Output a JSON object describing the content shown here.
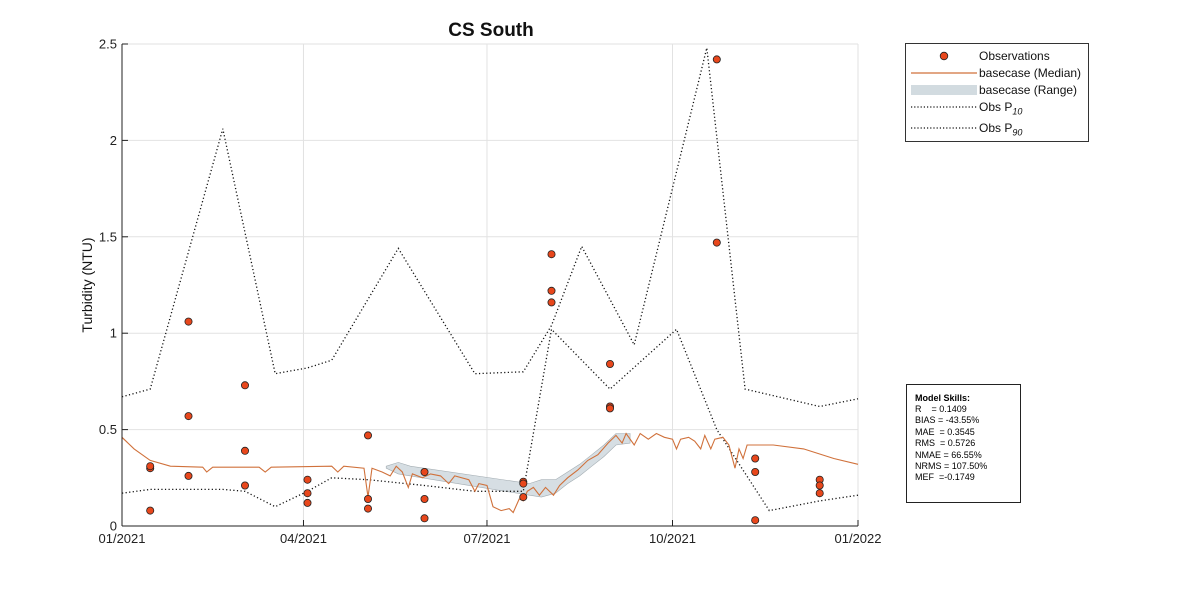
{
  "chart_data": {
    "type": "line",
    "title": "CS South",
    "xlabel": "",
    "ylabel": "Turbidity (NTU)",
    "x_type": "date",
    "xlim": [
      "2021-01-01",
      "2022-01-01"
    ],
    "ylim": [
      0,
      2.5
    ],
    "x_ticks": [
      "2021-01-01",
      "2021-04-01",
      "2021-07-01",
      "2021-10-01",
      "2022-01-01"
    ],
    "x_tick_labels": [
      "01/2021",
      "04/2021",
      "07/2021",
      "10/2021",
      "01/2022"
    ],
    "y_ticks": [
      0,
      0.5,
      1,
      1.5,
      2,
      2.5
    ],
    "y_tick_labels": [
      "0",
      "0.5",
      "1",
      "1.5",
      "2",
      "2.5"
    ],
    "grid": true,
    "legend_position": "outside-top-right",
    "series": [
      {
        "name": "Observations",
        "type": "scatter",
        "color": "#e8471c",
        "points": [
          [
            "2021-01-15",
            0.3
          ],
          [
            "2021-01-15",
            0.31
          ],
          [
            "2021-01-15",
            0.08
          ],
          [
            "2021-02-03",
            1.06
          ],
          [
            "2021-02-03",
            0.57
          ],
          [
            "2021-02-03",
            0.26
          ],
          [
            "2021-03-03",
            0.73
          ],
          [
            "2021-03-03",
            0.39
          ],
          [
            "2021-03-03",
            0.21
          ],
          [
            "2021-04-03",
            0.24
          ],
          [
            "2021-04-03",
            0.17
          ],
          [
            "2021-04-03",
            0.12
          ],
          [
            "2021-05-03",
            0.47
          ],
          [
            "2021-05-03",
            0.14
          ],
          [
            "2021-05-03",
            0.09
          ],
          [
            "2021-05-31",
            0.28
          ],
          [
            "2021-05-31",
            0.14
          ],
          [
            "2021-05-31",
            0.04
          ],
          [
            "2021-07-19",
            0.23
          ],
          [
            "2021-07-19",
            0.22
          ],
          [
            "2021-07-19",
            0.15
          ],
          [
            "2021-08-02",
            1.41
          ],
          [
            "2021-08-02",
            1.22
          ],
          [
            "2021-08-02",
            1.16
          ],
          [
            "2021-08-31",
            0.84
          ],
          [
            "2021-08-31",
            0.62
          ],
          [
            "2021-08-31",
            0.61
          ],
          [
            "2021-10-23",
            2.42
          ],
          [
            "2021-10-23",
            1.47
          ],
          [
            "2021-11-11",
            0.35
          ],
          [
            "2021-11-11",
            0.28
          ],
          [
            "2021-11-11",
            0.03
          ],
          [
            "2021-12-13",
            0.24
          ],
          [
            "2021-12-13",
            0.21
          ],
          [
            "2021-12-13",
            0.17
          ]
        ]
      },
      {
        "name": "basecase (Median)",
        "type": "line",
        "color": "#d0713b",
        "points": [
          [
            "2021-01-01",
            0.46
          ],
          [
            "2021-01-07",
            0.4
          ],
          [
            "2021-01-15",
            0.34
          ],
          [
            "2021-01-25",
            0.31
          ],
          [
            "2021-02-10",
            0.305
          ],
          [
            "2021-02-12",
            0.28
          ],
          [
            "2021-02-15",
            0.305
          ],
          [
            "2021-03-10",
            0.305
          ],
          [
            "2021-03-13",
            0.28
          ],
          [
            "2021-03-16",
            0.305
          ],
          [
            "2021-04-15",
            0.31
          ],
          [
            "2021-04-18",
            0.28
          ],
          [
            "2021-04-21",
            0.31
          ],
          [
            "2021-05-01",
            0.3
          ],
          [
            "2021-05-03",
            0.15
          ],
          [
            "2021-05-05",
            0.3
          ],
          [
            "2021-05-10",
            0.28
          ],
          [
            "2021-05-14",
            0.26
          ],
          [
            "2021-05-17",
            0.31
          ],
          [
            "2021-05-20",
            0.28
          ],
          [
            "2021-05-23",
            0.2
          ],
          [
            "2021-05-25",
            0.27
          ],
          [
            "2021-05-30",
            0.25
          ],
          [
            "2021-06-03",
            0.27
          ],
          [
            "2021-06-08",
            0.26
          ],
          [
            "2021-06-12",
            0.22
          ],
          [
            "2021-06-15",
            0.26
          ],
          [
            "2021-06-22",
            0.24
          ],
          [
            "2021-06-25",
            0.18
          ],
          [
            "2021-06-27",
            0.22
          ],
          [
            "2021-07-01",
            0.21
          ],
          [
            "2021-07-04",
            0.1
          ],
          [
            "2021-07-08",
            0.08
          ],
          [
            "2021-07-12",
            0.09
          ],
          [
            "2021-07-14",
            0.07
          ],
          [
            "2021-07-17",
            0.14
          ],
          [
            "2021-07-19",
            0.13
          ],
          [
            "2021-07-21",
            0.18
          ],
          [
            "2021-07-24",
            0.2
          ],
          [
            "2021-07-27",
            0.16
          ],
          [
            "2021-07-30",
            0.2
          ],
          [
            "2021-08-03",
            0.16
          ],
          [
            "2021-08-06",
            0.21
          ],
          [
            "2021-08-10",
            0.25
          ],
          [
            "2021-08-15",
            0.29
          ],
          [
            "2021-08-20",
            0.34
          ],
          [
            "2021-08-25",
            0.37
          ],
          [
            "2021-08-30",
            0.43
          ],
          [
            "2021-09-03",
            0.47
          ],
          [
            "2021-09-06",
            0.43
          ],
          [
            "2021-09-08",
            0.48
          ],
          [
            "2021-09-12",
            0.42
          ],
          [
            "2021-09-15",
            0.48
          ],
          [
            "2021-09-19",
            0.45
          ],
          [
            "2021-09-23",
            0.48
          ],
          [
            "2021-09-27",
            0.46
          ],
          [
            "2021-10-01",
            0.45
          ],
          [
            "2021-10-03",
            0.4
          ],
          [
            "2021-10-05",
            0.45
          ],
          [
            "2021-10-09",
            0.46
          ],
          [
            "2021-10-12",
            0.44
          ],
          [
            "2021-10-15",
            0.4
          ],
          [
            "2021-10-17",
            0.47
          ],
          [
            "2021-10-20",
            0.4
          ],
          [
            "2021-10-22",
            0.45
          ],
          [
            "2021-10-26",
            0.46
          ],
          [
            "2021-10-29",
            0.42
          ],
          [
            "2021-11-01",
            0.3
          ],
          [
            "2021-11-03",
            0.4
          ],
          [
            "2021-11-05",
            0.35
          ],
          [
            "2021-11-07",
            0.42
          ],
          [
            "2021-11-20",
            0.42
          ],
          [
            "2021-12-05",
            0.4
          ],
          [
            "2021-12-20",
            0.35
          ],
          [
            "2022-01-01",
            0.32
          ]
        ]
      },
      {
        "name": "basecase (Range)",
        "type": "area",
        "color": "#d2dbe0",
        "points": [
          [
            "2021-05-12",
            0.3,
            0.31
          ],
          [
            "2021-05-18",
            0.27,
            0.33
          ],
          [
            "2021-05-24",
            0.26,
            0.31
          ],
          [
            "2021-07-22",
            0.16,
            0.22
          ],
          [
            "2021-07-28",
            0.15,
            0.24
          ],
          [
            "2021-08-04",
            0.17,
            0.24
          ],
          [
            "2021-08-10",
            0.22,
            0.28
          ],
          [
            "2021-08-16",
            0.26,
            0.32
          ],
          [
            "2021-08-22",
            0.31,
            0.37
          ],
          [
            "2021-08-28",
            0.36,
            0.42
          ],
          [
            "2021-09-03",
            0.42,
            0.48
          ],
          [
            "2021-09-10",
            0.43,
            0.48
          ]
        ]
      },
      {
        "name": "Obs P10",
        "type": "line",
        "style": "dotted",
        "color": "#111111",
        "points": [
          [
            "2021-01-01",
            0.17
          ],
          [
            "2021-01-15",
            0.19
          ],
          [
            "2021-02-03",
            0.19
          ],
          [
            "2021-02-20",
            0.19
          ],
          [
            "2021-03-03",
            0.18
          ],
          [
            "2021-03-18",
            0.1
          ],
          [
            "2021-04-03",
            0.18
          ],
          [
            "2021-04-15",
            0.25
          ],
          [
            "2021-05-03",
            0.24
          ],
          [
            "2021-05-31",
            0.21
          ],
          [
            "2021-06-25",
            0.18
          ],
          [
            "2021-07-19",
            0.18
          ],
          [
            "2021-08-02",
            1.02
          ],
          [
            "2021-08-31",
            0.71
          ],
          [
            "2021-10-03",
            1.02
          ],
          [
            "2021-10-23",
            0.5
          ],
          [
            "2021-11-18",
            0.08
          ],
          [
            "2021-12-13",
            0.13
          ],
          [
            "2022-01-01",
            0.16
          ]
        ]
      },
      {
        "name": "Obs P90",
        "type": "line",
        "style": "dotted",
        "color": "#111111",
        "points": [
          [
            "2021-01-01",
            0.67
          ],
          [
            "2021-01-15",
            0.71
          ],
          [
            "2021-02-20",
            2.06
          ],
          [
            "2021-03-18",
            0.79
          ],
          [
            "2021-04-03",
            0.82
          ],
          [
            "2021-04-15",
            0.86
          ],
          [
            "2021-05-18",
            1.44
          ],
          [
            "2021-06-25",
            0.79
          ],
          [
            "2021-07-19",
            0.8
          ],
          [
            "2021-08-02",
            1.04
          ],
          [
            "2021-08-17",
            1.45
          ],
          [
            "2021-09-12",
            0.94
          ],
          [
            "2021-10-18",
            2.48
          ],
          [
            "2021-11-06",
            0.71
          ],
          [
            "2021-12-13",
            0.62
          ],
          [
            "2022-01-01",
            0.66
          ]
        ]
      }
    ]
  },
  "legend": {
    "items": [
      {
        "label": "Observations",
        "sub": ""
      },
      {
        "label": "basecase (Median)",
        "sub": ""
      },
      {
        "label": "basecase (Range)",
        "sub": ""
      },
      {
        "label": "Obs P",
        "sub": "10"
      },
      {
        "label": "Obs P",
        "sub": "90"
      }
    ]
  },
  "model_skills": {
    "title": "Model Skills:",
    "lines": [
      "R    = 0.1409",
      "BIAS = -43.55%",
      "MAE  = 0.3545",
      "RMS  = 0.5726",
      "NMAE = 66.55%",
      "NRMS = 107.50%",
      "MEF  =-0.1749"
    ]
  }
}
